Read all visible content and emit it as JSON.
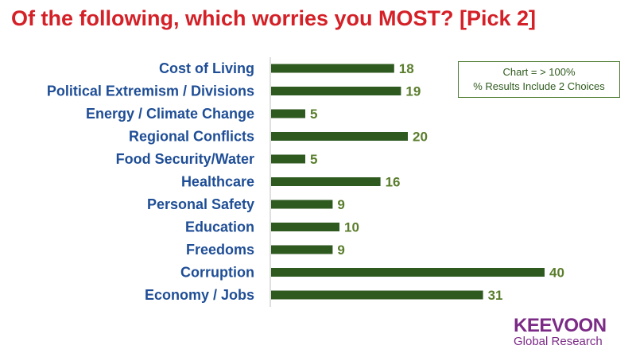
{
  "chart_data": {
    "type": "bar",
    "orientation": "horizontal",
    "title": "Of the following, which worries you MOST?  [Pick 2]",
    "categories": [
      "Cost of Living",
      "Political Extremism / Divisions",
      "Energy / Climate Change",
      "Regional Conflicts",
      "Food Security/Water",
      "Healthcare",
      "Personal Safety",
      "Education",
      "Freedoms",
      "Corruption",
      "Economy / Jobs"
    ],
    "values": [
      18,
      19,
      5,
      20,
      5,
      16,
      9,
      10,
      9,
      40,
      31
    ],
    "data_labels": [
      "18",
      "19",
      "5",
      "20",
      "5",
      "16",
      "9",
      "10",
      "9",
      "40",
      "31"
    ],
    "bar_color": "#2f5a1f",
    "label_color": "#1f4e96",
    "value_color": "#5a7d2c",
    "title_color": "#d42027",
    "grid": false,
    "legend": "none"
  },
  "note": {
    "line1": "Chart = > 100%",
    "line2": "% Results Include 2 Choices"
  },
  "logo": {
    "brand": "KEEVOON",
    "sub": "Global Research",
    "color": "#7b2a86"
  }
}
